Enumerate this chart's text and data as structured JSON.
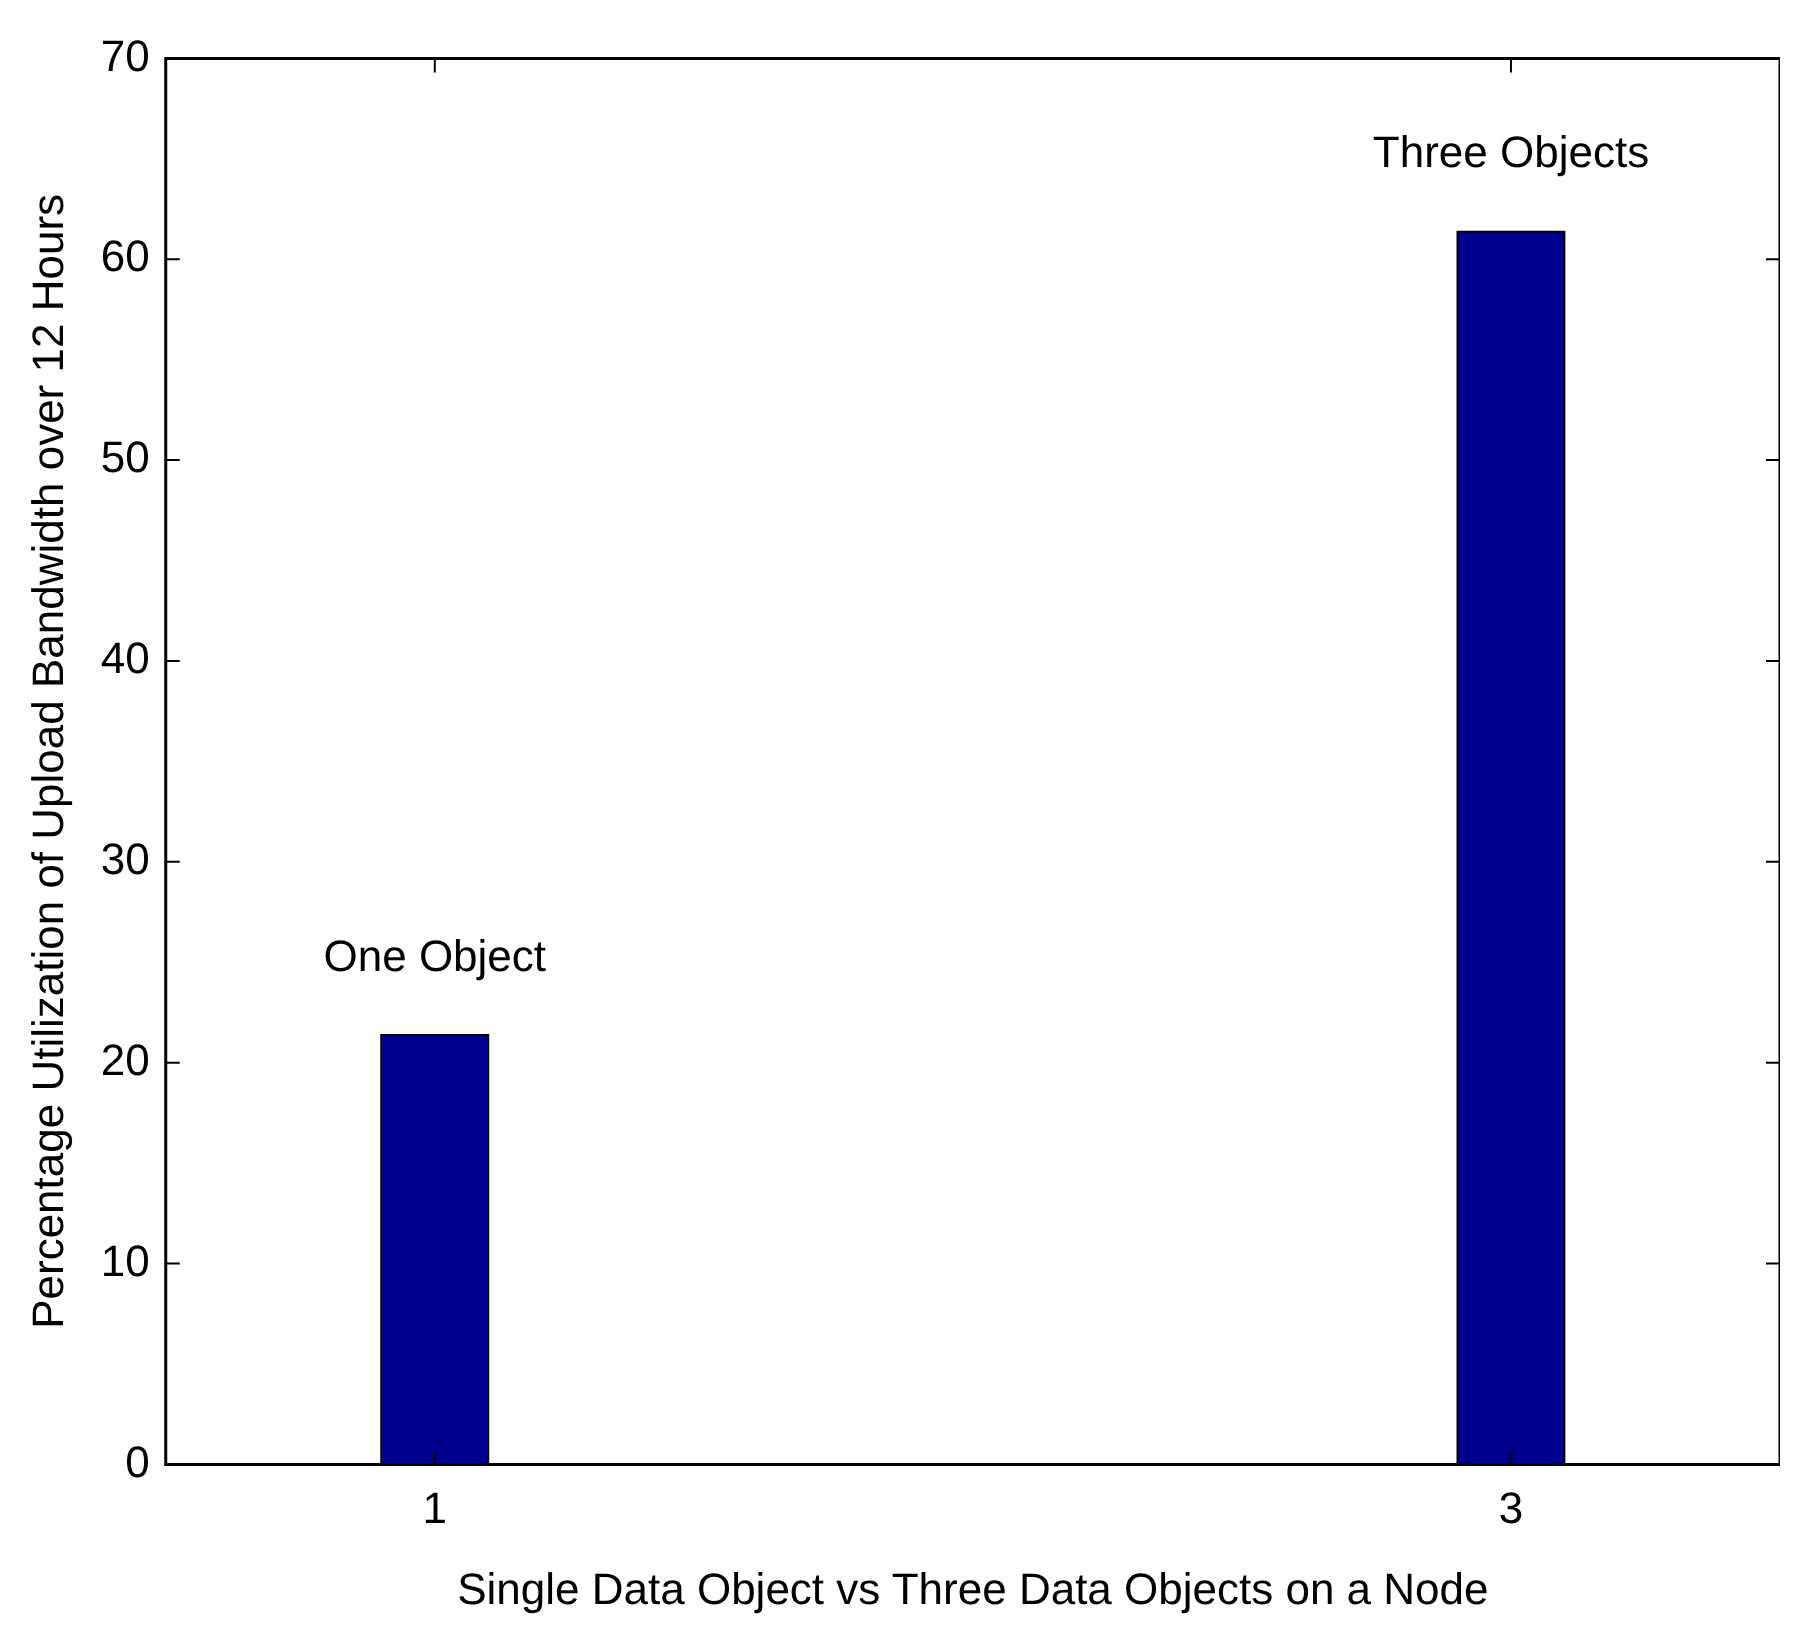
{
  "chart_data": {
    "type": "bar",
    "xlabel": "Single Data Object vs Three Data Objects on a Node",
    "ylabel": "Percentage Utilization of Upload Bandwidth over 12 Hours",
    "x": [
      1,
      3
    ],
    "values": [
      21.4,
      61.4
    ],
    "color": "#00008f",
    "xlim": [
      0.5,
      3.5
    ],
    "xticks": [
      1,
      3
    ],
    "ylim": [
      0,
      70
    ],
    "yticks": [
      0,
      10,
      20,
      30,
      40,
      50,
      60,
      70
    ],
    "grid": false,
    "legend": false,
    "annotations": [
      "One Object",
      "Three Objects"
    ]
  }
}
